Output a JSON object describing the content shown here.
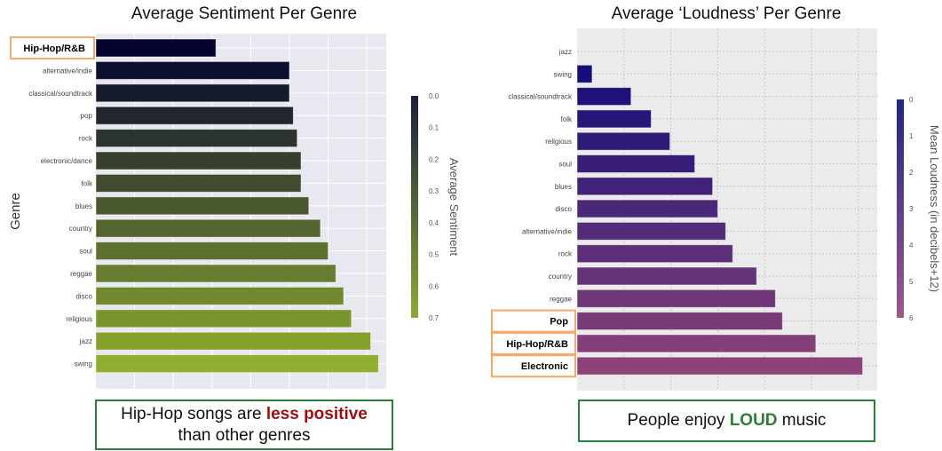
{
  "chart_data": [
    {
      "type": "bar",
      "orientation": "horizontal",
      "title": "Average Sentiment Per Genre",
      "ylabel": "Genre",
      "xlabel": "",
      "categories": [
        "Hip-Hop/R&B",
        "alternative/indie",
        "classical/soundtrack",
        "pop",
        "rock",
        "electronic/dance",
        "folk",
        "blues",
        "country",
        "soul",
        "reggae",
        "disco",
        "religious",
        "jazz",
        "swing"
      ],
      "values": [
        0.31,
        0.5,
        0.5,
        0.51,
        0.52,
        0.53,
        0.53,
        0.55,
        0.58,
        0.6,
        0.62,
        0.64,
        0.66,
        0.71,
        0.73
      ],
      "highlighted": [
        "Hip-Hop/R&B"
      ],
      "xlim": [
        0,
        0.75
      ],
      "grid": true,
      "background": "#e8e8f0",
      "colorbar": {
        "label": "Average Sentiment",
        "ticks": [
          "0.0",
          "0.1",
          "0.2",
          "0.3",
          "0.4",
          "0.5",
          "0.6",
          "0.7"
        ],
        "range": [
          0,
          0.7
        ],
        "colors": [
          "#1e1e3c",
          "#8aab35"
        ]
      },
      "bar_colors": [
        "#03032e",
        "#8fad2e"
      ]
    },
    {
      "type": "bar",
      "orientation": "horizontal",
      "title": "Average ‘Loudness’ Per Genre",
      "xlabel": "",
      "ylabel": "",
      "categories": [
        "jazz",
        "swing",
        "classical/soundtrack",
        "folk",
        "religious",
        "soul",
        "blues",
        "disco",
        "alternative/indie",
        "rock",
        "country",
        "reggae",
        "Pop",
        "Hip-Hop/R&B",
        "Electronic"
      ],
      "values": [
        0,
        0.32,
        1.15,
        1.58,
        1.98,
        2.51,
        2.89,
        3.0,
        3.17,
        3.32,
        3.83,
        4.23,
        4.38,
        5.09,
        6.09
      ],
      "highlighted": [
        "Pop",
        "Hip-Hop/R&B",
        "Electronic"
      ],
      "xlim": [
        0,
        6.4
      ],
      "grid": true,
      "background": "#ebebeb",
      "colorbar": {
        "label": "Mean Loudness (in decibels+12)",
        "ticks": [
          "0",
          "1",
          "2",
          "3",
          "4",
          "5",
          "6"
        ],
        "range": [
          0,
          6
        ],
        "colors": [
          "#232680",
          "#9a5a8a"
        ]
      },
      "bar_colors": [
        "#0a0a78",
        "#8c4378"
      ]
    }
  ],
  "notes": {
    "left": {
      "pre": "Hip-Hop songs are ",
      "em": "less positive",
      "post": " than other genres",
      "em_color": "#9b0e0e"
    },
    "right": {
      "pre": "People enjoy ",
      "em": "LOUD",
      "post": " music",
      "em_color": "#2e7d3a"
    }
  },
  "colors": {
    "highlight_border": "#f6a96a",
    "note_border": "#2e7d3a"
  }
}
